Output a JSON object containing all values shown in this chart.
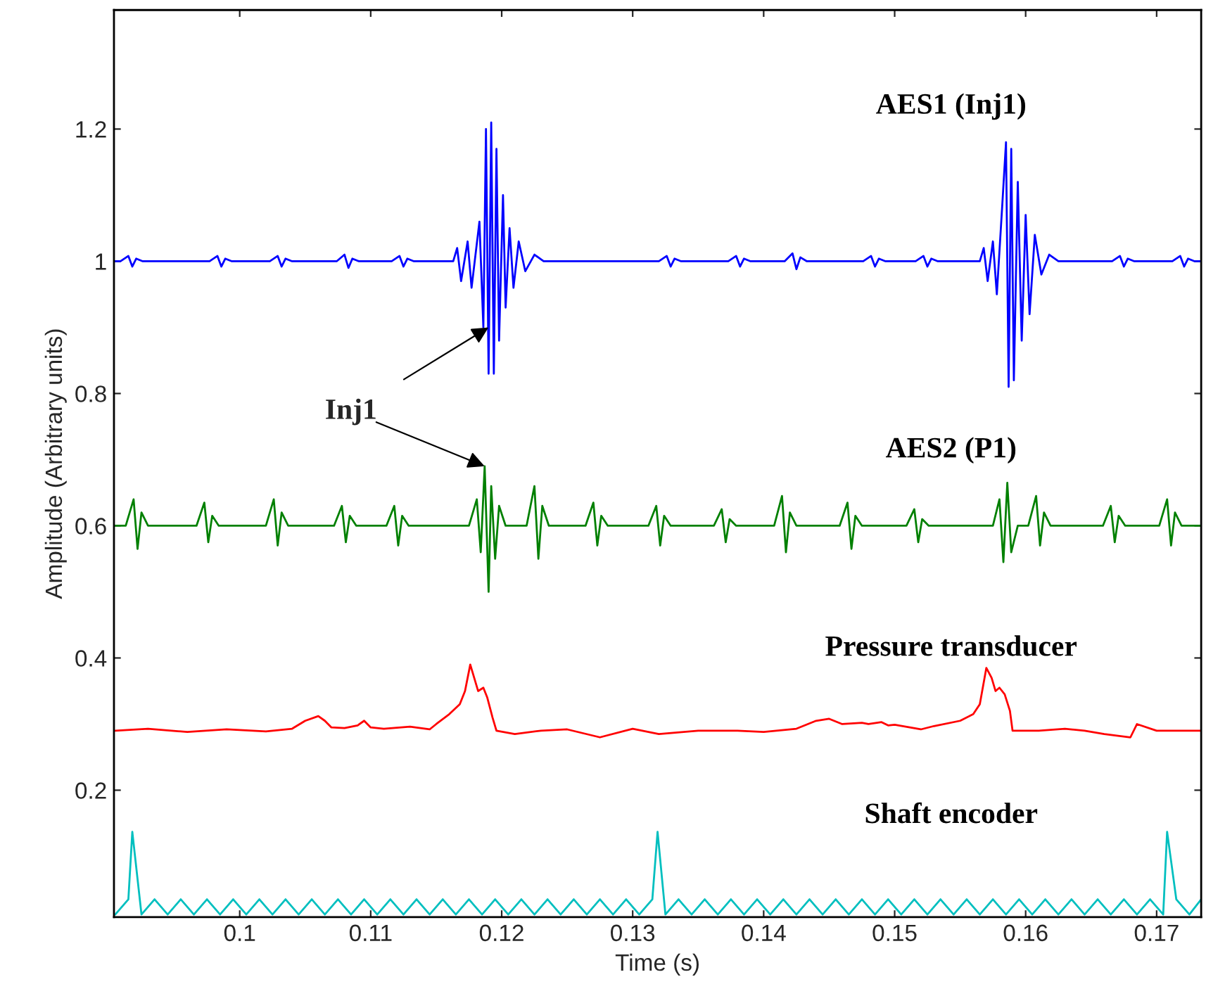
{
  "chart_data": {
    "type": "line",
    "xlabel": "Time (s)",
    "ylabel": "Amplitude (Arbitrary units)",
    "xlim": [
      0.0904,
      0.1734
    ],
    "ylim": [
      0.008,
      1.38
    ],
    "xticks": [
      0.1,
      0.11,
      0.12,
      0.13,
      0.14,
      0.15,
      0.16,
      0.17
    ],
    "yticks": [
      0.2,
      0.4,
      0.6,
      0.8,
      {
        "value": 1,
        "label": "1"
      },
      1.2
    ],
    "grid": false,
    "legend": false,
    "marker": "none",
    "line_style": "solid",
    "annotations": [
      {
        "text": "Inj1",
        "x": 0.119,
        "y": 0.9
      }
    ],
    "series": [
      {
        "name": "AES1 (Inj1)",
        "color": "#0000ff",
        "x": [
          0.0905,
          0.0909,
          0.0915,
          0.0918,
          0.0921,
          0.0926,
          0.0977,
          0.0983,
          0.0986,
          0.0989,
          0.0994,
          0.1023,
          0.1029,
          0.1032,
          0.1035,
          0.104,
          0.1074,
          0.108,
          0.1083,
          0.1086,
          0.1091,
          0.1116,
          0.1122,
          0.1125,
          0.1128,
          0.1133,
          0.1163,
          0.1166,
          0.1169,
          0.1174,
          0.1177,
          0.1183,
          0.1186,
          0.1188,
          0.119,
          0.1192,
          0.1194,
          0.1196,
          0.1198,
          0.1201,
          0.1203,
          0.1206,
          0.1209,
          0.1213,
          0.1218,
          0.1225,
          0.1232,
          0.132,
          0.1326,
          0.1329,
          0.1332,
          0.1337,
          0.1373,
          0.1379,
          0.1382,
          0.1385,
          0.139,
          0.1416,
          0.1422,
          0.1425,
          0.1428,
          0.1433,
          0.1476,
          0.1482,
          0.1485,
          0.1488,
          0.1493,
          0.1516,
          0.1522,
          0.1525,
          0.1528,
          0.1533,
          0.1565,
          0.1568,
          0.1571,
          0.1575,
          0.1578,
          0.1582,
          0.1585,
          0.1587,
          0.1589,
          0.1591,
          0.1594,
          0.1597,
          0.16,
          0.1603,
          0.1607,
          0.1612,
          0.1618,
          0.1625,
          0.1666,
          0.1672,
          0.1675,
          0.1678,
          0.1683,
          0.1712,
          0.1718,
          0.1721,
          0.1724,
          0.1729,
          0.1734
        ],
        "values": [
          1.0,
          1.0,
          1.008,
          0.992,
          1.004,
          1.0,
          1.0,
          1.008,
          0.992,
          1.004,
          1.0,
          1.0,
          1.008,
          0.992,
          1.004,
          1.0,
          1.0,
          1.01,
          0.99,
          1.004,
          1.0,
          1.0,
          1.008,
          0.992,
          1.004,
          1.0,
          1.0,
          1.02,
          0.97,
          1.03,
          0.96,
          1.06,
          0.9,
          1.2,
          0.83,
          1.21,
          0.83,
          1.17,
          0.88,
          1.1,
          0.93,
          1.05,
          0.96,
          1.03,
          0.985,
          1.01,
          1.0,
          1.0,
          1.008,
          0.992,
          1.004,
          1.0,
          1.0,
          1.008,
          0.992,
          1.004,
          1.0,
          1.0,
          1.012,
          0.988,
          1.006,
          1.0,
          1.0,
          1.008,
          0.992,
          1.004,
          1.0,
          1.0,
          1.008,
          0.992,
          1.004,
          1.0,
          1.0,
          1.02,
          0.97,
          1.03,
          0.95,
          1.08,
          1.18,
          0.81,
          1.17,
          0.82,
          1.12,
          0.88,
          1.07,
          0.92,
          1.04,
          0.98,
          1.01,
          1.0,
          1.0,
          1.008,
          0.992,
          1.004,
          1.0,
          1.0,
          1.008,
          0.992,
          1.004,
          1.0,
          1.0
        ]
      },
      {
        "name": "AES2 (P1)",
        "color": "#008000",
        "x": [
          0.0905,
          0.0913,
          0.0919,
          0.0922,
          0.0925,
          0.093,
          0.0967,
          0.0973,
          0.0976,
          0.0979,
          0.0984,
          0.102,
          0.1026,
          0.1029,
          0.1032,
          0.1037,
          0.1072,
          0.1078,
          0.1081,
          0.1084,
          0.1089,
          0.1112,
          0.1118,
          0.1121,
          0.1124,
          0.1129,
          0.1175,
          0.1181,
          0.1184,
          0.1187,
          0.119,
          0.1192,
          0.1195,
          0.1198,
          0.1203,
          0.1219,
          0.1225,
          0.1228,
          0.1231,
          0.1236,
          0.1264,
          0.127,
          0.1273,
          0.1276,
          0.1281,
          0.1312,
          0.1318,
          0.1321,
          0.1324,
          0.1329,
          0.1362,
          0.1368,
          0.1371,
          0.1374,
          0.1379,
          0.1408,
          0.1414,
          0.1417,
          0.142,
          0.1425,
          0.1458,
          0.1464,
          0.1467,
          0.147,
          0.1475,
          0.1509,
          0.1515,
          0.1518,
          0.1521,
          0.1526,
          0.1575,
          0.158,
          0.1583,
          0.1586,
          0.1589,
          0.1594,
          0.1602,
          0.1608,
          0.1611,
          0.1614,
          0.1619,
          0.1659,
          0.1665,
          0.1668,
          0.1671,
          0.1676,
          0.1702,
          0.1708,
          0.1711,
          0.1714,
          0.1719,
          0.1734
        ],
        "values": [
          0.6,
          0.6,
          0.64,
          0.565,
          0.62,
          0.6,
          0.6,
          0.635,
          0.575,
          0.615,
          0.6,
          0.6,
          0.64,
          0.57,
          0.62,
          0.6,
          0.6,
          0.63,
          0.575,
          0.615,
          0.6,
          0.6,
          0.63,
          0.57,
          0.615,
          0.6,
          0.6,
          0.64,
          0.56,
          0.69,
          0.5,
          0.66,
          0.55,
          0.63,
          0.6,
          0.6,
          0.66,
          0.55,
          0.63,
          0.6,
          0.6,
          0.635,
          0.57,
          0.615,
          0.6,
          0.6,
          0.63,
          0.57,
          0.615,
          0.6,
          0.6,
          0.625,
          0.575,
          0.61,
          0.6,
          0.6,
          0.645,
          0.56,
          0.62,
          0.6,
          0.6,
          0.635,
          0.565,
          0.615,
          0.6,
          0.6,
          0.625,
          0.575,
          0.61,
          0.6,
          0.6,
          0.64,
          0.545,
          0.665,
          0.56,
          0.6,
          0.6,
          0.645,
          0.57,
          0.62,
          0.6,
          0.6,
          0.63,
          0.575,
          0.615,
          0.6,
          0.6,
          0.64,
          0.57,
          0.62,
          0.6,
          0.6
        ]
      },
      {
        "name": "Pressure transducer",
        "color": "#ff0000",
        "x": [
          0.0905,
          0.093,
          0.096,
          0.099,
          0.102,
          0.104,
          0.105,
          0.106,
          0.1065,
          0.107,
          0.108,
          0.109,
          0.1095,
          0.11,
          0.111,
          0.113,
          0.1145,
          0.115,
          0.116,
          0.1168,
          0.1172,
          0.1176,
          0.1179,
          0.1182,
          0.1186,
          0.1189,
          0.1193,
          0.1196,
          0.121,
          0.123,
          0.125,
          0.1275,
          0.13,
          0.132,
          0.135,
          0.138,
          0.14,
          0.1425,
          0.144,
          0.145,
          0.146,
          0.1475,
          0.148,
          0.149,
          0.1495,
          0.15,
          0.152,
          0.153,
          0.155,
          0.156,
          0.1565,
          0.157,
          0.1574,
          0.1577,
          0.158,
          0.1584,
          0.1588,
          0.159,
          0.161,
          0.163,
          0.1645,
          0.166,
          0.168,
          0.1685,
          0.17,
          0.1734
        ],
        "values": [
          0.29,
          0.293,
          0.288,
          0.292,
          0.289,
          0.293,
          0.305,
          0.312,
          0.305,
          0.295,
          0.294,
          0.298,
          0.305,
          0.295,
          0.293,
          0.296,
          0.292,
          0.3,
          0.315,
          0.33,
          0.35,
          0.39,
          0.37,
          0.35,
          0.355,
          0.34,
          0.31,
          0.29,
          0.285,
          0.29,
          0.292,
          0.28,
          0.293,
          0.285,
          0.29,
          0.29,
          0.288,
          0.293,
          0.305,
          0.308,
          0.3,
          0.302,
          0.3,
          0.303,
          0.298,
          0.299,
          0.292,
          0.297,
          0.305,
          0.315,
          0.33,
          0.385,
          0.37,
          0.35,
          0.355,
          0.345,
          0.32,
          0.29,
          0.29,
          0.293,
          0.29,
          0.285,
          0.28,
          0.3,
          0.29,
          0.29
        ]
      },
      {
        "name": "Shaft encoder",
        "color": "#00bfbf",
        "x": [
          0.0905,
          0.0915,
          0.0918,
          0.0925,
          0.0935,
          0.0945,
          0.0955,
          0.0965,
          0.0975,
          0.0985,
          0.0995,
          0.1005,
          0.1015,
          0.1025,
          0.1035,
          0.1045,
          0.1055,
          0.1065,
          0.1075,
          0.1085,
          0.1095,
          0.1105,
          0.1115,
          0.1125,
          0.1135,
          0.1145,
          0.1155,
          0.1165,
          0.1175,
          0.1185,
          0.1195,
          0.1205,
          0.1215,
          0.1225,
          0.1235,
          0.1245,
          0.1255,
          0.1265,
          0.1275,
          0.1285,
          0.1295,
          0.1305,
          0.1315,
          0.1319,
          0.1325,
          0.1335,
          0.1345,
          0.1355,
          0.1365,
          0.1375,
          0.1385,
          0.1395,
          0.1405,
          0.1415,
          0.1425,
          0.1435,
          0.1445,
          0.1455,
          0.1465,
          0.1475,
          0.1485,
          0.1495,
          0.1505,
          0.1515,
          0.1525,
          0.1535,
          0.1545,
          0.1555,
          0.1565,
          0.1575,
          0.1585,
          0.1595,
          0.1605,
          0.1615,
          0.1625,
          0.1635,
          0.1645,
          0.1655,
          0.1665,
          0.1675,
          0.1685,
          0.1695,
          0.1705,
          0.1708,
          0.1715,
          0.1725,
          0.1734
        ],
        "values": [
          0.012,
          0.035,
          0.137,
          0.012,
          0.035,
          0.012,
          0.035,
          0.012,
          0.035,
          0.012,
          0.035,
          0.012,
          0.035,
          0.012,
          0.035,
          0.012,
          0.035,
          0.012,
          0.035,
          0.012,
          0.035,
          0.012,
          0.035,
          0.012,
          0.035,
          0.012,
          0.035,
          0.012,
          0.035,
          0.012,
          0.035,
          0.012,
          0.035,
          0.012,
          0.035,
          0.012,
          0.035,
          0.012,
          0.035,
          0.012,
          0.035,
          0.012,
          0.035,
          0.137,
          0.012,
          0.035,
          0.012,
          0.035,
          0.012,
          0.035,
          0.012,
          0.035,
          0.012,
          0.035,
          0.012,
          0.035,
          0.012,
          0.035,
          0.012,
          0.035,
          0.012,
          0.035,
          0.012,
          0.035,
          0.012,
          0.035,
          0.012,
          0.035,
          0.012,
          0.035,
          0.012,
          0.035,
          0.012,
          0.035,
          0.012,
          0.035,
          0.012,
          0.035,
          0.012,
          0.035,
          0.012,
          0.035,
          0.012,
          0.137,
          0.035,
          0.012,
          0.035
        ]
      }
    ]
  }
}
